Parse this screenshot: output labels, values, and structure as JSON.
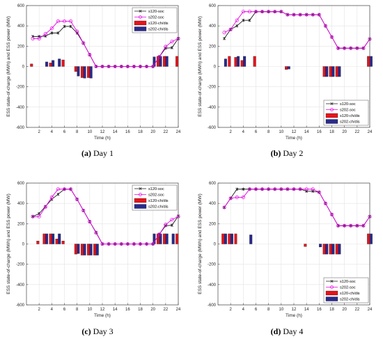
{
  "figure": {
    "captions": [
      {
        "label": "(a)",
        "text": "Day 1"
      },
      {
        "label": "(b)",
        "text": "Day 2"
      },
      {
        "label": "(c)",
        "text": "Day 3"
      },
      {
        "label": "(d)",
        "text": "Day 4"
      }
    ]
  },
  "colors": {
    "s120_soc": "#1a1a1a",
    "s202_soc": "#e600e6",
    "s120_bar": "#e8131b",
    "s202_bar": "#2a2a8c"
  },
  "chart_data": [
    {
      "type": "line+bar",
      "title": "",
      "xlabel": "Time (h)",
      "ylabel": "ESS state-of-charge (MWh) and ESS power (MW)",
      "xlim": [
        0,
        24
      ],
      "ylim": [
        -600,
        600
      ],
      "xticks": [
        2,
        4,
        6,
        8,
        10,
        12,
        14,
        16,
        18,
        20,
        22,
        24
      ],
      "yticks": [
        -600,
        -400,
        -200,
        0,
        200,
        400,
        600
      ],
      "legend_position": "top-right",
      "x": [
        1,
        2,
        3,
        4,
        5,
        6,
        7,
        8,
        9,
        10,
        11,
        12,
        13,
        14,
        15,
        16,
        17,
        18,
        19,
        20,
        21,
        22,
        23,
        24
      ],
      "series": [
        {
          "name": "s120-soc",
          "kind": "line",
          "values": [
            295,
            295,
            300,
            330,
            330,
            395,
            395,
            330,
            230,
            115,
            0,
            0,
            0,
            0,
            0,
            0,
            0,
            0,
            0,
            0,
            95,
            180,
            185,
            275
          ]
        },
        {
          "name": "s202-soc",
          "kind": "line",
          "values": [
            275,
            275,
            320,
            375,
            445,
            445,
            445,
            345,
            230,
            115,
            0,
            0,
            0,
            0,
            0,
            0,
            0,
            0,
            0,
            0,
            95,
            195,
            245,
            275
          ]
        },
        {
          "name": "s120-ch/dis",
          "kind": "bar",
          "values": [
            25,
            0,
            0,
            35,
            0,
            65,
            0,
            -50,
            -110,
            -110,
            0,
            0,
            0,
            0,
            0,
            0,
            0,
            0,
            0,
            0,
            100,
            100,
            0,
            100
          ]
        },
        {
          "name": "s202-ch/dis",
          "kind": "bar",
          "values": [
            0,
            0,
            45,
            60,
            75,
            0,
            0,
            -95,
            -115,
            -115,
            0,
            0,
            0,
            0,
            0,
            0,
            0,
            0,
            0,
            95,
            100,
            100,
            0,
            0
          ]
        }
      ]
    },
    {
      "type": "line+bar",
      "title": "",
      "xlabel": "Time (h)",
      "ylabel": "ESS state-of-charge (MWh) and ESS power (MW)",
      "xlim": [
        0,
        24
      ],
      "ylim": [
        -600,
        600
      ],
      "xticks": [
        2,
        4,
        6,
        8,
        10,
        12,
        14,
        16,
        18,
        20,
        22,
        24
      ],
      "yticks": [
        -600,
        -400,
        -200,
        0,
        200,
        400,
        600
      ],
      "legend_position": "bottom-right",
      "x": [
        1,
        2,
        3,
        4,
        5,
        6,
        7,
        8,
        9,
        10,
        11,
        12,
        13,
        14,
        15,
        16,
        17,
        18,
        19,
        20,
        21,
        22,
        23,
        24
      ],
      "series": [
        {
          "name": "s120-soc",
          "kind": "line",
          "values": [
            275,
            365,
            400,
            455,
            455,
            540,
            540,
            540,
            540,
            540,
            510,
            510,
            510,
            510,
            510,
            510,
            400,
            290,
            180,
            180,
            180,
            180,
            180,
            270
          ]
        },
        {
          "name": "s202-soc",
          "kind": "line",
          "values": [
            335,
            365,
            455,
            540,
            540,
            540,
            540,
            540,
            540,
            540,
            510,
            510,
            510,
            510,
            510,
            510,
            400,
            290,
            180,
            180,
            180,
            180,
            180,
            270
          ]
        },
        {
          "name": "s120-ch/dis",
          "kind": "bar",
          "values": [
            0,
            100,
            90,
            60,
            0,
            100,
            0,
            0,
            0,
            0,
            -30,
            0,
            0,
            0,
            0,
            0,
            -100,
            -100,
            -100,
            0,
            0,
            0,
            0,
            100
          ]
        },
        {
          "name": "s202-ch/dis",
          "kind": "bar",
          "values": [
            75,
            0,
            100,
            100,
            0,
            0,
            0,
            0,
            0,
            0,
            -25,
            0,
            0,
            0,
            0,
            0,
            -100,
            -100,
            -100,
            0,
            0,
            0,
            0,
            100
          ]
        }
      ]
    },
    {
      "type": "line+bar",
      "title": "",
      "xlabel": "Time (h)",
      "ylabel": "ESS state-of-charge (MWh) and ESS power (MW)",
      "xlim": [
        0,
        24
      ],
      "ylim": [
        -600,
        600
      ],
      "xticks": [
        2,
        4,
        6,
        8,
        10,
        12,
        14,
        16,
        18,
        20,
        22,
        24
      ],
      "yticks": [
        -600,
        -400,
        -200,
        0,
        200,
        400,
        600
      ],
      "legend_position": "top-right",
      "x": [
        1,
        2,
        3,
        4,
        5,
        6,
        7,
        8,
        9,
        10,
        11,
        12,
        13,
        14,
        15,
        16,
        17,
        18,
        19,
        20,
        21,
        22,
        23,
        24
      ],
      "series": [
        {
          "name": "s120-soc",
          "kind": "line",
          "values": [
            270,
            300,
            370,
            440,
            490,
            540,
            540,
            440,
            330,
            220,
            115,
            0,
            0,
            0,
            0,
            0,
            0,
            0,
            0,
            0,
            95,
            180,
            185,
            275
          ]
        },
        {
          "name": "s202-soc",
          "kind": "line",
          "values": [
            270,
            270,
            365,
            460,
            540,
            540,
            540,
            440,
            330,
            220,
            110,
            0,
            0,
            0,
            0,
            0,
            0,
            0,
            0,
            0,
            95,
            190,
            240,
            270
          ]
        },
        {
          "name": "s120-ch/dis",
          "kind": "bar",
          "values": [
            0,
            30,
            100,
            100,
            50,
            30,
            0,
            -100,
            -110,
            -110,
            -110,
            0,
            0,
            0,
            0,
            0,
            0,
            0,
            0,
            0,
            100,
            100,
            0,
            100
          ]
        },
        {
          "name": "s202-ch/dis",
          "kind": "bar",
          "values": [
            0,
            0,
            100,
            100,
            100,
            0,
            0,
            -95,
            -110,
            -110,
            -110,
            0,
            0,
            0,
            0,
            0,
            0,
            0,
            0,
            100,
            100,
            100,
            100,
            0
          ]
        }
      ]
    },
    {
      "type": "line+bar",
      "title": "",
      "xlabel": "Time (h)",
      "ylabel": "ESS state-of-charge (MWh) and ESS power (MW)",
      "xlim": [
        0,
        24
      ],
      "ylim": [
        -600,
        600
      ],
      "xticks": [
        2,
        4,
        6,
        8,
        10,
        12,
        14,
        16,
        18,
        20,
        22,
        24
      ],
      "yticks": [
        -600,
        -400,
        -200,
        0,
        200,
        400,
        600
      ],
      "legend_position": "bottom-right",
      "x": [
        1,
        2,
        3,
        4,
        5,
        6,
        7,
        8,
        9,
        10,
        11,
        12,
        13,
        14,
        15,
        16,
        17,
        18,
        19,
        20,
        21,
        22,
        23,
        24
      ],
      "series": [
        {
          "name": "s120-soc",
          "kind": "line",
          "values": [
            360,
            450,
            540,
            540,
            540,
            540,
            540,
            540,
            540,
            540,
            540,
            540,
            540,
            520,
            520,
            510,
            400,
            290,
            180,
            180,
            180,
            180,
            180,
            270
          ]
        },
        {
          "name": "s202-soc",
          "kind": "line",
          "values": [
            360,
            450,
            460,
            460,
            540,
            540,
            540,
            540,
            540,
            540,
            540,
            540,
            540,
            540,
            540,
            510,
            400,
            290,
            180,
            180,
            180,
            180,
            180,
            270
          ]
        },
        {
          "name": "s120-ch/dis",
          "kind": "bar",
          "values": [
            100,
            100,
            100,
            0,
            0,
            0,
            0,
            0,
            0,
            0,
            0,
            0,
            0,
            -25,
            0,
            0,
            -100,
            -100,
            -100,
            0,
            0,
            0,
            0,
            100
          ]
        },
        {
          "name": "s202-ch/dis",
          "kind": "bar",
          "values": [
            100,
            100,
            0,
            0,
            90,
            0,
            0,
            0,
            0,
            0,
            0,
            0,
            0,
            0,
            0,
            -30,
            -100,
            -100,
            -100,
            0,
            0,
            0,
            0,
            100
          ]
        }
      ]
    }
  ]
}
